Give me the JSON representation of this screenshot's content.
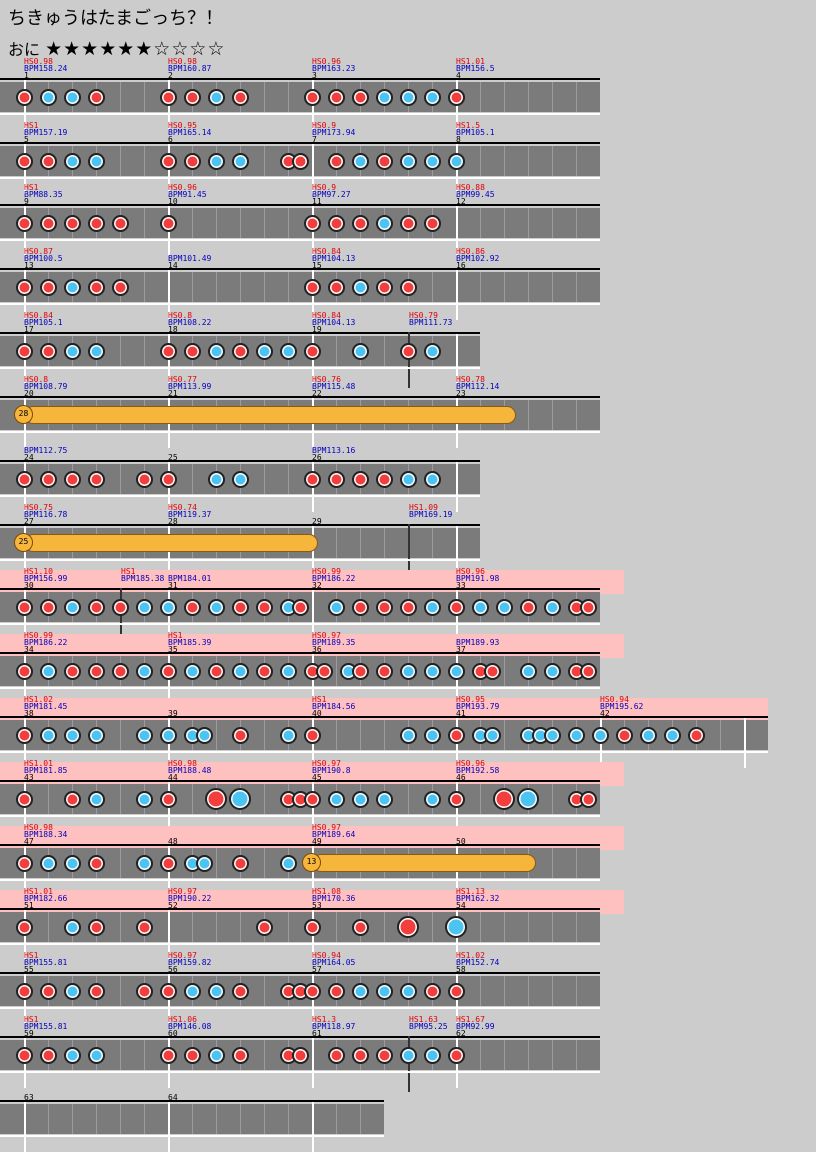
{
  "song_title": "ちきゅうはたまごっち？！",
  "difficulty": "おに",
  "stars": "★★★★★★☆☆☆☆",
  "colors": {
    "don": "#f33e3e",
    "ka": "#4cc4f2",
    "roll": "#f6b53b",
    "gogo": "#ffc0c0",
    "lane": "#7b7b7b"
  },
  "rows": [
    {
      "measures": [
        {
          "hs": "HS0.98",
          "bpm": "BPM158.24",
          "num": "1"
        },
        {
          "hs": "HS0.98",
          "bpm": "BPM160.87",
          "num": "2"
        },
        {
          "hs": "HS0.96",
          "bpm": "BPM163.23",
          "num": "3"
        },
        {
          "hs": "HS1.01",
          "bpm": "BPM156.5",
          "num": "4"
        }
      ]
    },
    {
      "measures": [
        {
          "hs": "HS1",
          "bpm": "BPM157.19",
          "num": "5"
        },
        {
          "hs": "HS0.95",
          "bpm": "BPM165.14",
          "num": "6"
        },
        {
          "hs": "HS0.9",
          "bpm": "BPM173.94",
          "num": "7"
        },
        {
          "hs": "HS1.5",
          "bpm": "BPM105.1",
          "num": "8"
        }
      ]
    },
    {
      "measures": [
        {
          "hs": "HS1",
          "bpm": "BPM88.35",
          "num": "9"
        },
        {
          "hs": "HS0.96",
          "bpm": "BPM91.45",
          "num": "10"
        },
        {
          "hs": "HS0.9",
          "bpm": "BPM97.27",
          "num": "11"
        },
        {
          "hs": "HS0.88",
          "bpm": "BPM99.45",
          "num": "12"
        }
      ]
    },
    {
      "measures": [
        {
          "hs": "HS0.87",
          "bpm": "BPM100.5",
          "num": "13"
        },
        {
          "hs": "",
          "bpm": "BPM101.49",
          "num": "14"
        },
        {
          "hs": "HS0.84",
          "bpm": "BPM104.13",
          "num": "15"
        },
        {
          "hs": "HS0.86",
          "bpm": "BPM102.92",
          "num": "16"
        }
      ]
    },
    {
      "measures": [
        {
          "hs": "HS0.84",
          "bpm": "BPM105.1",
          "num": "17"
        },
        {
          "hs": "HS0.8",
          "bpm": "BPM108.22",
          "num": "18"
        },
        {
          "hs": "HS0.84",
          "bpm": "BPM104.13",
          "num": "19"
        }
      ],
      "extra": {
        "hs": "HS0.79",
        "bpm": "BPM111.73"
      }
    },
    {
      "measures": [
        {
          "hs": "HS0.8",
          "bpm": "BPM108.79",
          "num": "20"
        },
        {
          "hs": "HS0.77",
          "bpm": "BPM113.99",
          "num": "21"
        },
        {
          "hs": "HS0.76",
          "bpm": "BPM115.48",
          "num": "22"
        },
        {
          "hs": "HS0.78",
          "bpm": "BPM112.14",
          "num": "23"
        }
      ],
      "roll_count": "28"
    },
    {
      "measures": [
        {
          "hs": "",
          "bpm": "BPM112.75",
          "num": "24"
        },
        {
          "hs": "",
          "bpm": "",
          "num": "25"
        },
        {
          "hs": "",
          "bpm": "BPM113.16",
          "num": "26"
        }
      ]
    },
    {
      "measures": [
        {
          "hs": "HS0.75",
          "bpm": "BPM116.78",
          "num": "27"
        },
        {
          "hs": "HS0.74",
          "bpm": "BPM119.37",
          "num": "28"
        },
        {
          "hs": "",
          "bpm": "",
          "num": "29"
        }
      ],
      "extra": {
        "hs": "HS1.09",
        "bpm": "BPM169.19"
      },
      "roll_count": "25"
    },
    {
      "measures": [
        {
          "hs": "HS1.10",
          "bpm": "BPM156.99",
          "num": "30"
        },
        {
          "hs": "",
          "bpm": "BPM184.01",
          "num": "31"
        },
        {
          "hs": "HS0.99",
          "bpm": "BPM186.22",
          "num": "32"
        },
        {
          "hs": "HS0.96",
          "bpm": "BPM191.98",
          "num": "33"
        }
      ],
      "extra": {
        "hs": "HS1",
        "bpm": "BPM185.38"
      }
    },
    {
      "measures": [
        {
          "hs": "HS0.99",
          "bpm": "BPM186.22",
          "num": "34"
        },
        {
          "hs": "HS1",
          "bpm": "BPM185.39",
          "num": "35"
        },
        {
          "hs": "HS0.97",
          "bpm": "BPM189.35",
          "num": "36"
        },
        {
          "hs": "",
          "bpm": "BPM189.93",
          "num": "37"
        }
      ]
    },
    {
      "measures": [
        {
          "hs": "HS1.02",
          "bpm": "BPM181.45",
          "num": "38"
        },
        {
          "hs": "",
          "bpm": "",
          "num": "39"
        },
        {
          "hs": "HS1",
          "bpm": "BPM184.56",
          "num": "40"
        },
        {
          "hs": "HS0.95",
          "bpm": "BPM193.79",
          "num": "41"
        },
        {
          "hs": "HS0.94",
          "bpm": "BPM195.62",
          "num": "42"
        }
      ]
    },
    {
      "measures": [
        {
          "hs": "HS1.01",
          "bpm": "BPM181.85",
          "num": "43"
        },
        {
          "hs": "HS0.98",
          "bpm": "BPM188.48",
          "num": "44"
        },
        {
          "hs": "HS0.97",
          "bpm": "BPM190.8",
          "num": "45"
        },
        {
          "hs": "HS0.96",
          "bpm": "BPM192.58",
          "num": "46"
        }
      ]
    },
    {
      "measures": [
        {
          "hs": "HS0.98",
          "bpm": "BPM188.34",
          "num": "47"
        },
        {
          "hs": "",
          "bpm": "",
          "num": "48"
        },
        {
          "hs": "HS0.97",
          "bpm": "BPM189.64",
          "num": "49"
        },
        {
          "hs": "",
          "bpm": "",
          "num": "50"
        }
      ],
      "roll_count": "13"
    },
    {
      "measures": [
        {
          "hs": "HS1.01",
          "bpm": "BPM182.66",
          "num": "51"
        },
        {
          "hs": "HS0.97",
          "bpm": "BPM190.22",
          "num": "52"
        },
        {
          "hs": "HS1.08",
          "bpm": "BPM170.36",
          "num": "53"
        },
        {
          "hs": "HS1.13",
          "bpm": "BPM162.32",
          "num": "54"
        }
      ]
    },
    {
      "measures": [
        {
          "hs": "HS1",
          "bpm": "BPM155.81",
          "num": "55"
        },
        {
          "hs": "HS0.97",
          "bpm": "BPM159.82",
          "num": "56"
        },
        {
          "hs": "HS0.94",
          "bpm": "BPM164.05",
          "num": "57"
        },
        {
          "hs": "HS1.02",
          "bpm": "BPM152.74",
          "num": "58"
        }
      ]
    },
    {
      "measures": [
        {
          "hs": "HS1",
          "bpm": "BPM155.81",
          "num": "59"
        },
        {
          "hs": "HS1.06",
          "bpm": "BPM146.08",
          "num": "60"
        },
        {
          "hs": "HS1.3",
          "bpm": "BPM118.97",
          "num": "61"
        },
        {
          "hs": "HS1.67",
          "bpm": "BPM92.99",
          "num": "62"
        }
      ],
      "extra": {
        "hs": "HS1.63",
        "bpm": "BPM95.25"
      }
    },
    {
      "measures": [
        {
          "hs": "",
          "bpm": "",
          "num": "63"
        },
        {
          "hs": "",
          "bpm": "",
          "num": "64"
        }
      ]
    }
  ]
}
